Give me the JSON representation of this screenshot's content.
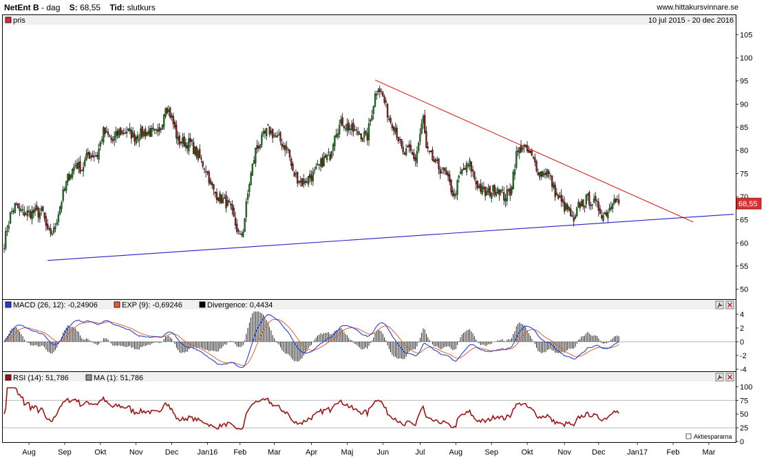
{
  "header": {
    "stock": "NetEnt B",
    "dash_period": "- dag",
    "s_label": "S:",
    "s_value": "68,55",
    "tid_label": "Tid:",
    "tid_value": "slutkurs",
    "site": "www.hittakursvinnare.se"
  },
  "colors": {
    "price_up": "#1a7a1a",
    "price_down": "#8b1a1a",
    "trend_down": "#e02020",
    "trend_up": "#2020c8",
    "macd": "#1f3fd8",
    "exp": "#e06030",
    "divergence": "#000000",
    "rsi": "#a01010",
    "price_tag_bg": "#d83030"
  },
  "icons": [
    "wrench-icon",
    "close-icon",
    "copyright-icon"
  ],
  "chart_data": [
    {
      "type": "candlestick",
      "legend": "pris",
      "date_range": "10 jul 2015 - 20 dec 2016",
      "last_price_label": "68,55",
      "ylim": [
        48,
        107
      ],
      "yticks": [
        50,
        55,
        60,
        65,
        70,
        75,
        80,
        85,
        90,
        95,
        100,
        105
      ],
      "x_months": [
        "Aug",
        "Sep",
        "Okt",
        "Nov",
        "Dec",
        "Jan16",
        "Feb",
        "Mar",
        "Apr",
        "Maj",
        "Jun",
        "Jul",
        "Aug",
        "Sep",
        "Okt",
        "Nov",
        "Dec",
        "Jan17",
        "Feb",
        "Mar"
      ],
      "month_index": [
        16,
        39,
        62,
        85,
        108,
        131,
        152,
        174,
        198,
        221,
        244,
        268,
        291,
        314,
        337,
        361,
        383,
        408,
        431,
        454
      ],
      "total_days": 470,
      "anchors": [
        [
          0,
          60
        ],
        [
          4,
          66
        ],
        [
          7,
          68
        ],
        [
          12,
          66.5
        ],
        [
          25,
          66.5
        ],
        [
          28,
          62
        ],
        [
          32,
          62.5
        ],
        [
          36,
          68
        ],
        [
          41,
          74
        ],
        [
          46,
          77
        ],
        [
          50,
          76
        ],
        [
          54,
          79
        ],
        [
          60,
          79
        ],
        [
          64,
          84
        ],
        [
          70,
          82
        ],
        [
          74,
          84
        ],
        [
          80,
          84
        ],
        [
          84,
          83
        ],
        [
          92,
          84
        ],
        [
          100,
          83.5
        ],
        [
          104,
          90
        ],
        [
          108,
          87
        ],
        [
          112,
          82
        ],
        [
          120,
          81.5
        ],
        [
          130,
          76
        ],
        [
          135,
          71
        ],
        [
          145,
          68
        ],
        [
          152,
          61
        ],
        [
          154,
          63
        ],
        [
          158,
          73
        ],
        [
          162,
          80
        ],
        [
          170,
          84.5
        ],
        [
          178,
          82
        ],
        [
          183,
          80
        ],
        [
          186,
          75
        ],
        [
          192,
          73
        ],
        [
          200,
          75
        ],
        [
          206,
          78
        ],
        [
          210,
          79
        ],
        [
          213,
          84
        ],
        [
          218,
          86
        ],
        [
          226,
          84
        ],
        [
          234,
          83
        ],
        [
          239,
          92
        ],
        [
          241,
          94
        ],
        [
          244,
          91.5
        ],
        [
          248,
          87
        ],
        [
          252,
          85
        ],
        [
          257,
          79
        ],
        [
          261,
          80
        ],
        [
          265,
          78
        ],
        [
          270,
          87
        ],
        [
          272,
          80
        ],
        [
          278,
          77
        ],
        [
          284,
          75
        ],
        [
          290,
          70
        ],
        [
          294,
          75
        ],
        [
          300,
          77
        ],
        [
          304,
          73
        ],
        [
          310,
          70.5
        ],
        [
          318,
          72
        ],
        [
          322,
          70
        ],
        [
          326,
          71
        ],
        [
          330,
          79
        ],
        [
          334,
          81
        ],
        [
          341,
          78
        ],
        [
          345,
          75
        ],
        [
          350,
          75.5
        ],
        [
          355,
          71
        ],
        [
          360,
          68
        ],
        [
          364,
          67
        ],
        [
          367,
          64
        ],
        [
          370,
          68
        ],
        [
          376,
          69.5
        ],
        [
          382,
          68
        ],
        [
          386,
          66
        ],
        [
          390,
          67.5
        ],
        [
          393,
          70.5
        ],
        [
          396,
          68.5
        ]
      ],
      "lines": [
        {
          "name": "resistance",
          "from": [
            239,
            95.2
          ],
          "to": [
            444,
            64.5
          ]
        },
        {
          "name": "support",
          "from": [
            28,
            56.2
          ],
          "to": [
            470,
            66.2
          ]
        }
      ]
    },
    {
      "type": "line",
      "legend": [
        {
          "label": "MACD (26, 12): -0,24906"
        },
        {
          "label": "EXP (9): -0,69246"
        },
        {
          "label": "Divergence: 0,4434"
        }
      ],
      "ylim": [
        -4.2,
        4.6
      ],
      "yticks": [
        -4,
        -2,
        0,
        2,
        4
      ]
    },
    {
      "type": "line",
      "legend": [
        {
          "label": "RSI (14): 51,786"
        },
        {
          "label": "MA (1): 51,786"
        }
      ],
      "ylim": [
        0,
        108
      ],
      "yticks": [
        0,
        25,
        50,
        75,
        100
      ],
      "hlines": [
        25,
        75
      ],
      "credit": "Aktiespararna"
    }
  ]
}
